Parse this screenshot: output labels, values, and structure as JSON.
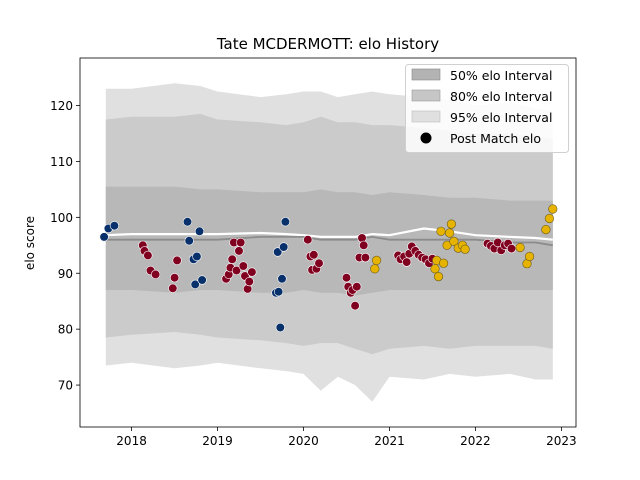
{
  "chart_data": {
    "type": "scatter",
    "title": "Tate MCDERMOTT: elo History",
    "xlabel": "",
    "ylabel": "elo score",
    "xlim": [
      2017.4,
      2023.17
    ],
    "ylim": [
      62.5,
      128.5
    ],
    "x_ticks": [
      2018,
      2019,
      2020,
      2021,
      2022,
      2023
    ],
    "x_tick_labels": [
      "2018",
      "2019",
      "2020",
      "2021",
      "2022",
      "2023"
    ],
    "y_ticks": [
      70,
      80,
      90,
      100,
      110,
      120
    ],
    "y_tick_labels": [
      "70",
      "80",
      "90",
      "100",
      "110",
      "120"
    ],
    "grid": false,
    "legend_position": "top-right",
    "legend": [
      {
        "label": "50% elo Interval",
        "kind": "band",
        "color": "#b3b3b3"
      },
      {
        "label": "80% elo Interval",
        "kind": "band",
        "color": "#c6c6c6"
      },
      {
        "label": "95% elo Interval",
        "kind": "band",
        "color": "#e0e0e0"
      },
      {
        "label": "Post Match elo",
        "kind": "marker",
        "color": "#000000"
      }
    ],
    "colors": {
      "band_95": "#e0e0e0",
      "band_80": "#cbcbcb",
      "band_50": "#b8b8b8",
      "mean_line": "#8c8c8c",
      "upper_line": "#ffffff",
      "blue_points": "#08306b",
      "red_points": "#800020",
      "gold_points": "#e6b400"
    },
    "bands": {
      "x": [
        2017.7,
        2018.0,
        2018.5,
        2018.8,
        2019.0,
        2019.5,
        2019.8,
        2020.0,
        2020.2,
        2020.4,
        2020.6,
        2020.8,
        2021.0,
        2021.4,
        2021.7,
        2022.0,
        2022.4,
        2022.7,
        2022.9
      ],
      "p95_low": [
        73.5,
        74.0,
        73.0,
        73.5,
        74.0,
        73.0,
        72.5,
        72.0,
        69.0,
        71.5,
        70.0,
        67.0,
        71.5,
        71.0,
        72.0,
        71.5,
        72.0,
        71.0,
        71.0
      ],
      "p95_high": [
        123.0,
        123.0,
        124.0,
        123.5,
        122.5,
        121.5,
        122.0,
        122.5,
        122.5,
        121.5,
        122.0,
        122.5,
        122.0,
        121.5,
        121.0,
        120.0,
        120.5,
        119.5,
        119.0
      ],
      "p80_low": [
        78.5,
        79.0,
        79.5,
        79.0,
        78.5,
        78.0,
        77.5,
        77.0,
        77.5,
        77.5,
        76.5,
        75.5,
        76.5,
        77.0,
        76.5,
        77.0,
        77.0,
        77.0,
        76.5
      ],
      "p80_high": [
        117.5,
        118.0,
        118.0,
        118.5,
        117.5,
        117.0,
        116.5,
        117.0,
        118.0,
        117.0,
        117.0,
        116.5,
        116.5,
        116.0,
        115.5,
        115.0,
        115.0,
        114.5,
        114.0
      ],
      "p50_low": [
        87.0,
        87.0,
        86.5,
        87.0,
        87.0,
        86.5,
        86.5,
        87.0,
        86.5,
        86.5,
        86.0,
        86.5,
        87.0,
        87.0,
        87.0,
        87.0,
        87.0,
        87.0,
        87.0
      ],
      "p50_high": [
        105.5,
        105.5,
        105.5,
        105.0,
        105.0,
        104.5,
        104.5,
        104.5,
        105.0,
        104.5,
        104.5,
        104.0,
        104.5,
        104.0,
        103.5,
        103.5,
        103.0,
        103.0,
        103.0
      ],
      "mean": [
        96.0,
        96.0,
        96.0,
        96.0,
        96.0,
        96.5,
        96.5,
        96.5,
        96.0,
        96.0,
        96.0,
        96.5,
        96.0,
        96.0,
        96.0,
        96.0,
        95.5,
        95.5,
        95.0
      ],
      "upper": [
        96.8,
        97.0,
        97.0,
        97.0,
        97.0,
        97.2,
        97.0,
        96.8,
        96.5,
        96.5,
        96.5,
        97.0,
        96.8,
        98.0,
        97.5,
        96.8,
        96.5,
        96.3,
        96.0
      ]
    },
    "series": [
      {
        "color_key": "blue_points",
        "points": [
          [
            2017.68,
            96.5
          ],
          [
            2017.73,
            98.0
          ],
          [
            2017.8,
            98.5
          ],
          [
            2018.65,
            99.2
          ],
          [
            2018.67,
            95.8
          ],
          [
            2018.72,
            92.5
          ],
          [
            2018.74,
            88.0
          ],
          [
            2018.76,
            93.0
          ],
          [
            2018.79,
            97.5
          ],
          [
            2018.82,
            88.8
          ],
          [
            2019.68,
            86.5
          ],
          [
            2019.7,
            93.8
          ],
          [
            2019.71,
            86.7
          ],
          [
            2019.73,
            80.3
          ],
          [
            2019.75,
            89.0
          ],
          [
            2019.77,
            94.7
          ],
          [
            2019.79,
            99.2
          ]
        ]
      },
      {
        "color_key": "red_points",
        "points": [
          [
            2018.13,
            95.0
          ],
          [
            2018.15,
            94.0
          ],
          [
            2018.19,
            93.2
          ],
          [
            2018.22,
            90.5
          ],
          [
            2018.28,
            89.8
          ],
          [
            2018.48,
            87.3
          ],
          [
            2018.5,
            89.2
          ],
          [
            2018.53,
            92.3
          ],
          [
            2019.1,
            89.0
          ],
          [
            2019.13,
            89.8
          ],
          [
            2019.15,
            91.0
          ],
          [
            2019.17,
            92.5
          ],
          [
            2019.19,
            95.5
          ],
          [
            2019.22,
            90.5
          ],
          [
            2019.25,
            94.0
          ],
          [
            2019.27,
            95.5
          ],
          [
            2019.3,
            91.3
          ],
          [
            2019.32,
            89.5
          ],
          [
            2019.35,
            87.2
          ],
          [
            2019.37,
            88.5
          ],
          [
            2019.4,
            90.2
          ],
          [
            2020.05,
            96.0
          ],
          [
            2020.08,
            93.0
          ],
          [
            2020.1,
            90.6
          ],
          [
            2020.12,
            93.3
          ],
          [
            2020.15,
            90.8
          ],
          [
            2020.18,
            91.8
          ],
          [
            2020.5,
            89.2
          ],
          [
            2020.52,
            87.6
          ],
          [
            2020.55,
            86.5
          ],
          [
            2020.57,
            87.0
          ],
          [
            2020.6,
            84.2
          ],
          [
            2020.62,
            87.6
          ],
          [
            2020.65,
            92.8
          ],
          [
            2020.68,
            96.3
          ],
          [
            2020.7,
            95.0
          ],
          [
            2020.72,
            92.8
          ],
          [
            2021.1,
            93.2
          ],
          [
            2021.13,
            92.5
          ],
          [
            2021.17,
            93.0
          ],
          [
            2021.2,
            92.0
          ],
          [
            2021.23,
            93.5
          ],
          [
            2021.26,
            94.8
          ],
          [
            2021.3,
            94.0
          ],
          [
            2021.34,
            93.3
          ],
          [
            2021.38,
            92.8
          ],
          [
            2021.42,
            92.5
          ],
          [
            2021.46,
            91.8
          ],
          [
            2021.5,
            92.6
          ],
          [
            2022.14,
            95.3
          ],
          [
            2022.18,
            94.9
          ],
          [
            2022.22,
            94.4
          ],
          [
            2022.26,
            95.5
          ],
          [
            2022.3,
            94.1
          ],
          [
            2022.34,
            95.0
          ],
          [
            2022.38,
            95.3
          ],
          [
            2022.42,
            94.4
          ]
        ]
      },
      {
        "color_key": "gold_points",
        "points": [
          [
            2020.83,
            90.8
          ],
          [
            2020.85,
            92.3
          ],
          [
            2021.53,
            90.8
          ],
          [
            2021.55,
            92.3
          ],
          [
            2021.57,
            89.4
          ],
          [
            2021.6,
            97.5
          ],
          [
            2021.63,
            91.8
          ],
          [
            2021.67,
            95.0
          ],
          [
            2021.7,
            97.2
          ],
          [
            2021.72,
            98.8
          ],
          [
            2021.75,
            95.7
          ],
          [
            2021.8,
            94.5
          ],
          [
            2021.85,
            95.0
          ],
          [
            2021.88,
            94.3
          ],
          [
            2022.52,
            94.6
          ],
          [
            2022.6,
            91.7
          ],
          [
            2022.63,
            93.0
          ],
          [
            2022.82,
            97.8
          ],
          [
            2022.86,
            99.8
          ],
          [
            2022.9,
            101.5
          ]
        ]
      }
    ]
  }
}
